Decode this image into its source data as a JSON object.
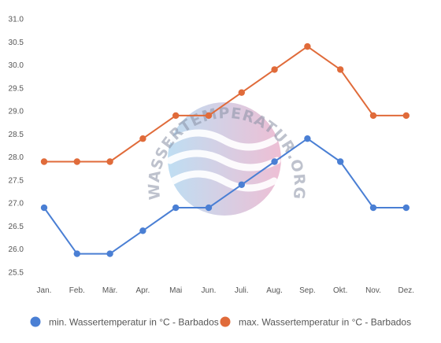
{
  "chart_data": {
    "type": "line",
    "categories": [
      "Jan.",
      "Feb.",
      "Mär.",
      "Apr.",
      "Mai",
      "Jun.",
      "Juli.",
      "Aug.",
      "Sep.",
      "Okt.",
      "Nov.",
      "Dez."
    ],
    "series": [
      {
        "name": "min. Wassertemperatur in °C - Barbados",
        "color": "#4a7fd4",
        "values": [
          26.9,
          25.9,
          25.9,
          26.4,
          26.9,
          26.9,
          27.4,
          27.9,
          28.4,
          27.9,
          26.9,
          26.9
        ]
      },
      {
        "name": "max. Wassertemperatur in °C - Barbados",
        "color": "#e06b3a",
        "values": [
          27.9,
          27.9,
          27.9,
          28.4,
          28.9,
          28.9,
          29.4,
          29.9,
          30.4,
          29.9,
          28.9,
          28.9
        ]
      }
    ],
    "ylim": [
      25.5,
      31.0
    ],
    "yticks": [
      "25.5",
      "26.0",
      "26.5",
      "27.0",
      "27.5",
      "28.0",
      "28.5",
      "29.0",
      "29.5",
      "30.0",
      "30.5",
      "31.0"
    ],
    "title": "",
    "xlabel": "",
    "ylabel": "",
    "grid": false,
    "legend_position": "bottom"
  },
  "watermark": {
    "text": "WASSERTEMPERATUR.ORG",
    "colors": [
      "#a9d3ee",
      "#e8a9c6"
    ]
  }
}
